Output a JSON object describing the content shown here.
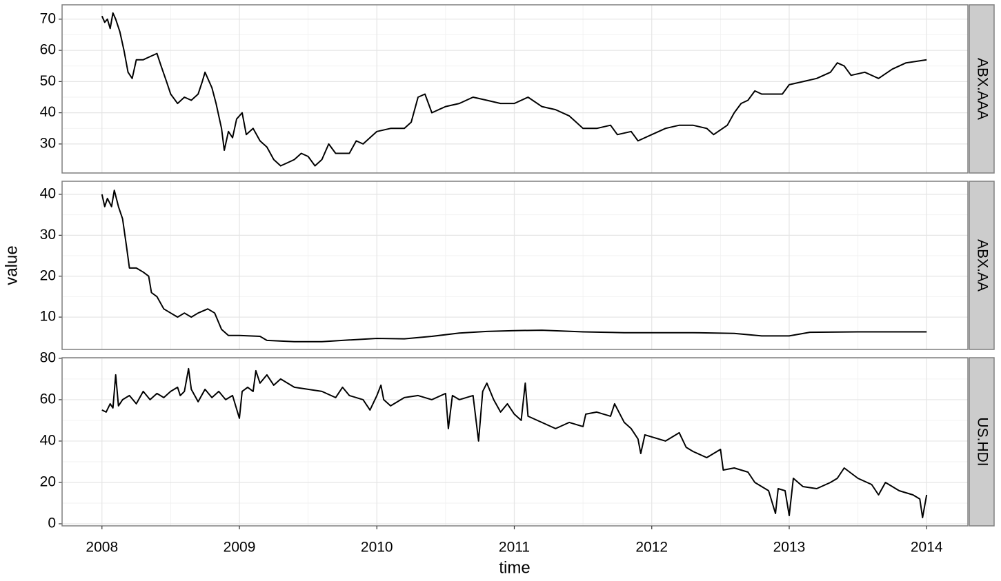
{
  "chart_data": [
    {
      "type": "line",
      "strip": "ABX.AAA",
      "color": "#000000",
      "grid": true,
      "xlim": [
        2007.71,
        2014.3
      ],
      "ylim": [
        20.7,
        74.6
      ],
      "yticks": [
        30,
        40,
        50,
        60,
        70
      ],
      "x": [
        2008.0,
        2008.02,
        2008.04,
        2008.06,
        2008.08,
        2008.1,
        2008.13,
        2008.16,
        2008.19,
        2008.22,
        2008.25,
        2008.3,
        2008.35,
        2008.4,
        2008.43,
        2008.47,
        2008.5,
        2008.55,
        2008.6,
        2008.65,
        2008.7,
        2008.73,
        2008.75,
        2008.8,
        2008.83,
        2008.87,
        2008.89,
        2008.92,
        2008.95,
        2008.98,
        2009.02,
        2009.05,
        2009.1,
        2009.15,
        2009.2,
        2009.25,
        2009.3,
        2009.35,
        2009.4,
        2009.45,
        2009.5,
        2009.55,
        2009.6,
        2009.65,
        2009.7,
        2009.8,
        2009.85,
        2009.9,
        2010.0,
        2010.1,
        2010.2,
        2010.25,
        2010.3,
        2010.35,
        2010.4,
        2010.5,
        2010.6,
        2010.7,
        2010.8,
        2010.9,
        2011.0,
        2011.1,
        2011.2,
        2011.3,
        2011.4,
        2011.45,
        2011.5,
        2011.6,
        2011.7,
        2011.75,
        2011.85,
        2011.9,
        2012.0,
        2012.1,
        2012.2,
        2012.3,
        2012.4,
        2012.45,
        2012.55,
        2012.6,
        2012.65,
        2012.7,
        2012.75,
        2012.8,
        2012.95,
        2013.0,
        2013.1,
        2013.2,
        2013.3,
        2013.35,
        2013.4,
        2013.45,
        2013.55,
        2013.65,
        2013.75,
        2013.85,
        2014.0
      ],
      "values": [
        71,
        69,
        70,
        67,
        72,
        70,
        66,
        60,
        53,
        51,
        57,
        57,
        58,
        59,
        55,
        50,
        46,
        43,
        45,
        44,
        46,
        50,
        53,
        48,
        43,
        35,
        28,
        34,
        32,
        38,
        40,
        33,
        35,
        31,
        29,
        25,
        23,
        24,
        25,
        27,
        26,
        23,
        25,
        30,
        27,
        27,
        31,
        30,
        34,
        35,
        35,
        37,
        45,
        46,
        40,
        42,
        43,
        45,
        44,
        43,
        43,
        45,
        42,
        41,
        39,
        37,
        35,
        35,
        36,
        33,
        34,
        31,
        33,
        35,
        36,
        36,
        35,
        33,
        36,
        40,
        43,
        44,
        47,
        46,
        46,
        49,
        50,
        51,
        53,
        56,
        55,
        52,
        53,
        51,
        54,
        56,
        57
      ]
    },
    {
      "type": "line",
      "strip": "ABX.AA",
      "ylabel": "value",
      "color": "#000000",
      "grid": true,
      "xlim": [
        2007.71,
        2014.3
      ],
      "ylim": [
        2.1,
        43.2
      ],
      "yticks": [
        10,
        20,
        30,
        40
      ],
      "x": [
        2008.0,
        2008.02,
        2008.04,
        2008.07,
        2008.09,
        2008.12,
        2008.15,
        2008.18,
        2008.2,
        2008.25,
        2008.3,
        2008.34,
        2008.36,
        2008.4,
        2008.45,
        2008.5,
        2008.55,
        2008.6,
        2008.65,
        2008.7,
        2008.77,
        2008.82,
        2008.87,
        2008.92,
        2009.0,
        2009.15,
        2009.2,
        2009.4,
        2009.6,
        2009.8,
        2010.0,
        2010.2,
        2010.4,
        2010.6,
        2010.8,
        2011.0,
        2011.2,
        2011.5,
        2011.8,
        2012.0,
        2012.3,
        2012.6,
        2012.8,
        2013.0,
        2013.15,
        2013.5,
        2014.0
      ],
      "values": [
        40,
        37,
        39,
        37,
        41,
        37,
        34,
        27,
        22,
        22,
        21,
        20,
        16,
        15,
        12,
        11,
        10,
        11,
        10,
        11,
        12,
        11,
        7,
        5.5,
        5.5,
        5.3,
        4.3,
        4,
        4,
        4.4,
        4.8,
        4.7,
        5.3,
        6.1,
        6.5,
        6.7,
        6.8,
        6.4,
        6.2,
        6.2,
        6.2,
        6.0,
        5.4,
        5.4,
        6.3,
        6.4,
        6.4
      ]
    },
    {
      "type": "line",
      "strip": "US.HDI",
      "xlabel": "time",
      "color": "#000000",
      "grid": true,
      "xlim": [
        2007.71,
        2014.3
      ],
      "ylim": [
        -1,
        80.3
      ],
      "yticks": [
        0,
        20,
        40,
        60,
        80
      ],
      "xticks": [
        2008,
        2009,
        2010,
        2011,
        2012,
        2013,
        2014
      ],
      "x": [
        2008.0,
        2008.03,
        2008.06,
        2008.08,
        2008.1,
        2008.12,
        2008.15,
        2008.2,
        2008.25,
        2008.3,
        2008.35,
        2008.4,
        2008.45,
        2008.5,
        2008.55,
        2008.57,
        2008.6,
        2008.63,
        2008.65,
        2008.7,
        2008.75,
        2008.8,
        2008.85,
        2008.9,
        2008.95,
        2009.0,
        2009.02,
        2009.06,
        2009.1,
        2009.12,
        2009.15,
        2009.2,
        2009.25,
        2009.3,
        2009.4,
        2009.5,
        2009.6,
        2009.7,
        2009.75,
        2009.8,
        2009.9,
        2009.95,
        2010.0,
        2010.03,
        2010.05,
        2010.1,
        2010.2,
        2010.3,
        2010.4,
        2010.5,
        2010.52,
        2010.55,
        2010.6,
        2010.7,
        2010.74,
        2010.77,
        2010.8,
        2010.85,
        2010.9,
        2010.95,
        2011.0,
        2011.05,
        2011.08,
        2011.1,
        2011.2,
        2011.3,
        2011.4,
        2011.5,
        2011.52,
        2011.6,
        2011.7,
        2011.73,
        2011.8,
        2011.85,
        2011.9,
        2011.92,
        2011.95,
        2012.0,
        2012.1,
        2012.2,
        2012.25,
        2012.3,
        2012.4,
        2012.45,
        2012.5,
        2012.52,
        2012.6,
        2012.7,
        2012.75,
        2012.8,
        2012.85,
        2012.9,
        2012.92,
        2012.97,
        2013.0,
        2013.03,
        2013.1,
        2013.2,
        2013.3,
        2013.35,
        2013.4,
        2013.5,
        2013.6,
        2013.65,
        2013.7,
        2013.8,
        2013.85,
        2013.9,
        2013.95,
        2013.97,
        2014.0
      ],
      "values": [
        55,
        54,
        58,
        56,
        72,
        57,
        60,
        62,
        58,
        64,
        60,
        63,
        61,
        64,
        66,
        62,
        64,
        75,
        65,
        59,
        65,
        61,
        64,
        60,
        62,
        51,
        64,
        66,
        64,
        74,
        68,
        72,
        67,
        70,
        66,
        65,
        64,
        61,
        66,
        62,
        60,
        55,
        62,
        67,
        60,
        57,
        61,
        62,
        60,
        63,
        46,
        62,
        60,
        62,
        40,
        64,
        68,
        60,
        54,
        58,
        53,
        50,
        68,
        52,
        49,
        46,
        49,
        47,
        53,
        54,
        52,
        58,
        49,
        46,
        41,
        34,
        43,
        42,
        40,
        44,
        37,
        35,
        32,
        34,
        36,
        26,
        27,
        25,
        20,
        18,
        16,
        5,
        17,
        16,
        4,
        22,
        18,
        17,
        20,
        22,
        27,
        22,
        19,
        14,
        20,
        16,
        15,
        14,
        12,
        3,
        14
      ]
    }
  ]
}
